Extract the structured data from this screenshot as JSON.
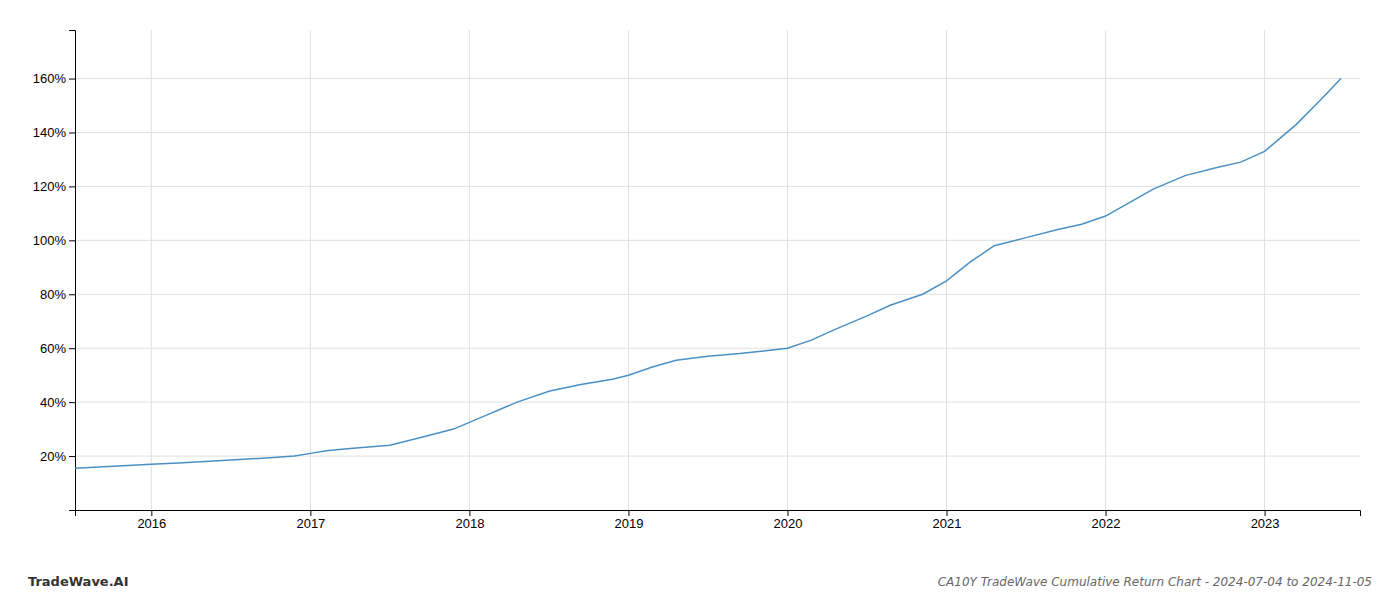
{
  "chart_data": {
    "type": "line",
    "title": "CA10Y TradeWave Cumulative Return Chart - 2024-07-04 to 2024-11-05",
    "annotations": [
      {
        "text": "TradeWave.AI"
      }
    ],
    "color": "#4a90c4",
    "x": [
      2015.52,
      2015.7,
      2016.0,
      2016.2,
      2016.5,
      2016.7,
      2016.9,
      2017.0,
      2017.1,
      2017.25,
      2017.5,
      2017.7,
      2017.9,
      2018.1,
      2018.3,
      2018.5,
      2018.7,
      2018.9,
      2019.0,
      2019.15,
      2019.3,
      2019.5,
      2019.7,
      2019.85,
      2020.0,
      2020.15,
      2020.3,
      2020.5,
      2020.65,
      2020.85,
      2021.0,
      2021.15,
      2021.3,
      2021.5,
      2021.7,
      2021.85,
      2022.0,
      2022.15,
      2022.3,
      2022.5,
      2022.7,
      2022.85,
      2023.0,
      2023.1,
      2023.2,
      2023.3,
      2023.4,
      2023.48
    ],
    "values": [
      15.5,
      16.0,
      17.0,
      17.5,
      18.5,
      19.2,
      20.0,
      21.0,
      22.0,
      22.8,
      24.0,
      27.0,
      30.0,
      35.0,
      40.0,
      44.0,
      46.5,
      48.5,
      50.0,
      53.0,
      55.5,
      57.0,
      58.0,
      59.0,
      60.0,
      63.0,
      67.0,
      72.0,
      76.0,
      80.0,
      85.0,
      92.0,
      98.0,
      101.0,
      104.0,
      106.0,
      109.0,
      114.0,
      119.0,
      124.0,
      127.0,
      129.0,
      133.0,
      138.0,
      143.0,
      149.0,
      155.0,
      160.0
    ],
    "xlim": [
      2015.52,
      2023.6
    ],
    "xticks": [
      2016,
      2017,
      2018,
      2019,
      2020,
      2021,
      2022,
      2023
    ],
    "ylim": [
      0,
      178
    ],
    "yticks": [
      {
        "value": 20,
        "label": "20%"
      },
      {
        "value": 40,
        "label": "40%"
      },
      {
        "value": 60,
        "label": "60%"
      },
      {
        "value": 80,
        "label": "80%"
      },
      {
        "value": 100,
        "label": "100%"
      },
      {
        "value": 120,
        "label": "120%"
      },
      {
        "value": 140,
        "label": "140%"
      },
      {
        "value": 160,
        "label": "160%"
      }
    ],
    "grid": true
  }
}
